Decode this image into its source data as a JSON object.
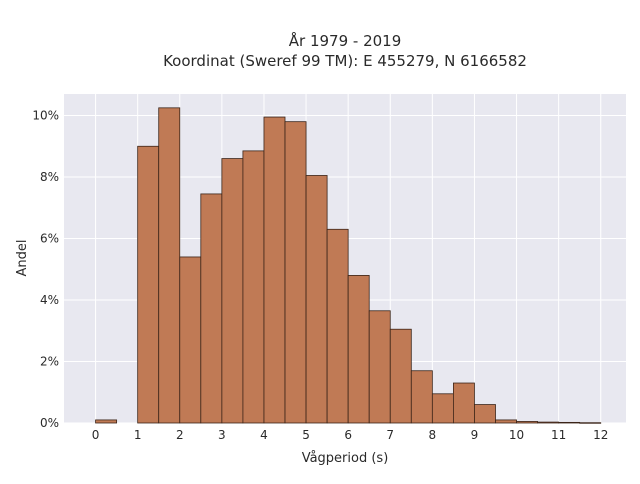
{
  "chart_data": {
    "type": "bar",
    "title_lines": [
      "År 1979 - 2019",
      "Koordinat (Sweref 99 TM): E 455279, N 6166582"
    ],
    "xlabel": "Vågperiod (s)",
    "ylabel": "Andel",
    "bin_width": 0.5,
    "bin_starts": [
      0,
      1,
      1.5,
      2,
      2.5,
      3,
      3.5,
      4,
      4.5,
      5,
      5.5,
      6,
      6.5,
      7,
      7.5,
      8,
      8.5,
      9,
      9.5,
      10,
      10.5,
      11,
      11.5
    ],
    "values": [
      0.1,
      9.0,
      10.25,
      5.4,
      7.45,
      8.6,
      8.85,
      9.95,
      9.8,
      8.05,
      6.3,
      4.8,
      3.65,
      3.05,
      1.7,
      0.95,
      1.3,
      0.6,
      0.1,
      0.05,
      0.03,
      0.02,
      0.01
    ],
    "xlim": [
      -0.75,
      12.6
    ],
    "ylim": [
      0,
      10.7
    ],
    "x_ticks": [
      0,
      1,
      2,
      3,
      4,
      5,
      6,
      7,
      8,
      9,
      10,
      11,
      12
    ],
    "x_tick_labels": [
      "0",
      "1",
      "2",
      "3",
      "4",
      "5",
      "6",
      "7",
      "8",
      "9",
      "10",
      "11",
      "12"
    ],
    "y_ticks": [
      0,
      2,
      4,
      6,
      8,
      10
    ],
    "y_tick_labels": [
      "0%",
      "2%",
      "4%",
      "6%",
      "8%",
      "10%"
    ],
    "grid": true,
    "colors": {
      "bar_fill": "#c07a55",
      "bar_stroke": "#3b2418",
      "plot_bg": "#e8e8f0",
      "grid": "#ffffff"
    }
  }
}
